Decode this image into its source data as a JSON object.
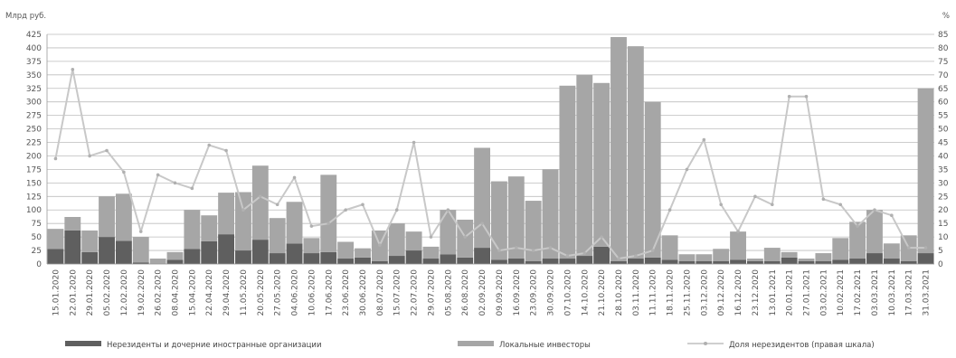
{
  "chart_data": {
    "type": "bar",
    "stacked": true,
    "left_axis_unit": "Млрд руб.",
    "right_axis_unit": "%",
    "ylim": [
      0,
      425
    ],
    "yticks": [
      0,
      25,
      50,
      75,
      100,
      125,
      150,
      175,
      200,
      225,
      250,
      275,
      300,
      325,
      350,
      375,
      400,
      425
    ],
    "y2lim": [
      0,
      85
    ],
    "y2ticks": [
      0,
      5,
      10,
      15,
      20,
      25,
      30,
      35,
      40,
      45,
      50,
      55,
      60,
      65,
      70,
      75,
      80,
      85
    ],
    "grid": true,
    "categories": [
      "15.01.2020",
      "22.01.2020",
      "29.01.2020",
      "05.02.2020",
      "12.02.2020",
      "19.02.2020",
      "26.02.2020",
      "08.04.2020",
      "15.04.2020",
      "22.04.2020",
      "29.04.2020",
      "11.05.2020",
      "20.05.2020",
      "27.05.2020",
      "04.06.2020",
      "10.06.2020",
      "17.06.2020",
      "23.06.2020",
      "30.06.2020",
      "08.07.2020",
      "15.07.2020",
      "22.07.2020",
      "29.07.2020",
      "05.08.2020",
      "26.08.2020",
      "02.09.2020",
      "09.09.2020",
      "16.09.2020",
      "23.09.2020",
      "30.09.2020",
      "07.10.2020",
      "14.10.2020",
      "21.10.2020",
      "28.10.2020",
      "03.11.2020",
      "11.11.2020",
      "18.11.2020",
      "25.11.2020",
      "03.12.2020",
      "09.12.2020",
      "16.12.2020",
      "23.12.2020",
      "13.01.2021",
      "20.01.2021",
      "27.01.2021",
      "03.02.2021",
      "10.02.2021",
      "17.02.2021",
      "03.03.2021",
      "10.03.2021",
      "17.03.2021",
      "31.03.2021"
    ],
    "series": [
      {
        "name": "Нерезиденты и дочерние иностранные организации",
        "kind": "bar",
        "color": "#5f5f5f",
        "values": [
          28,
          62,
          22,
          50,
          43,
          3,
          1,
          8,
          28,
          42,
          55,
          25,
          45,
          20,
          38,
          20,
          22,
          10,
          12,
          5,
          15,
          25,
          10,
          18,
          12,
          30,
          8,
          10,
          5,
          10,
          10,
          15,
          32,
          5,
          10,
          12,
          8,
          5,
          5,
          5,
          8,
          5,
          5,
          12,
          5,
          5,
          8,
          10,
          20,
          10,
          5,
          20
        ]
      },
      {
        "name": "Локальные инвесторы",
        "kind": "bar",
        "color": "#a6a6a6",
        "values": [
          37,
          25,
          40,
          75,
          87,
          47,
          9,
          14,
          72,
          48,
          77,
          108,
          137,
          65,
          77,
          28,
          143,
          31,
          17,
          57,
          60,
          35,
          22,
          82,
          70,
          185,
          145,
          152,
          112,
          165,
          320,
          335,
          303,
          415,
          393,
          288,
          45,
          13,
          13,
          23,
          52,
          5,
          25,
          10,
          5,
          15,
          40,
          68,
          80,
          28,
          48,
          305
        ]
      },
      {
        "name": "Доля нерезидентов (правая шкала)",
        "kind": "line",
        "axis": "right",
        "color": "#c8c8c8",
        "values": [
          39,
          72,
          40,
          42,
          34,
          12,
          33,
          30,
          28,
          44,
          42,
          20,
          25,
          22,
          32,
          14,
          15,
          20,
          22,
          7,
          20,
          45,
          10,
          20,
          10,
          15,
          5,
          6,
          5,
          6,
          3,
          4,
          10,
          2,
          3,
          5,
          20,
          35,
          46,
          22,
          12,
          25,
          22,
          62,
          62,
          24,
          22,
          14,
          20,
          18,
          6,
          6
        ]
      }
    ],
    "legend": {
      "placement": "bottom",
      "items": [
        {
          "label": "Нерезиденты и дочерние иностранные организации",
          "color": "#5f5f5f",
          "kind": "bar"
        },
        {
          "label": "Локальные инвесторы",
          "color": "#a6a6a6",
          "kind": "bar"
        },
        {
          "label": "Доля нерезидентов (правая шкала)",
          "color": "#c8c8c8",
          "kind": "line"
        }
      ]
    }
  }
}
